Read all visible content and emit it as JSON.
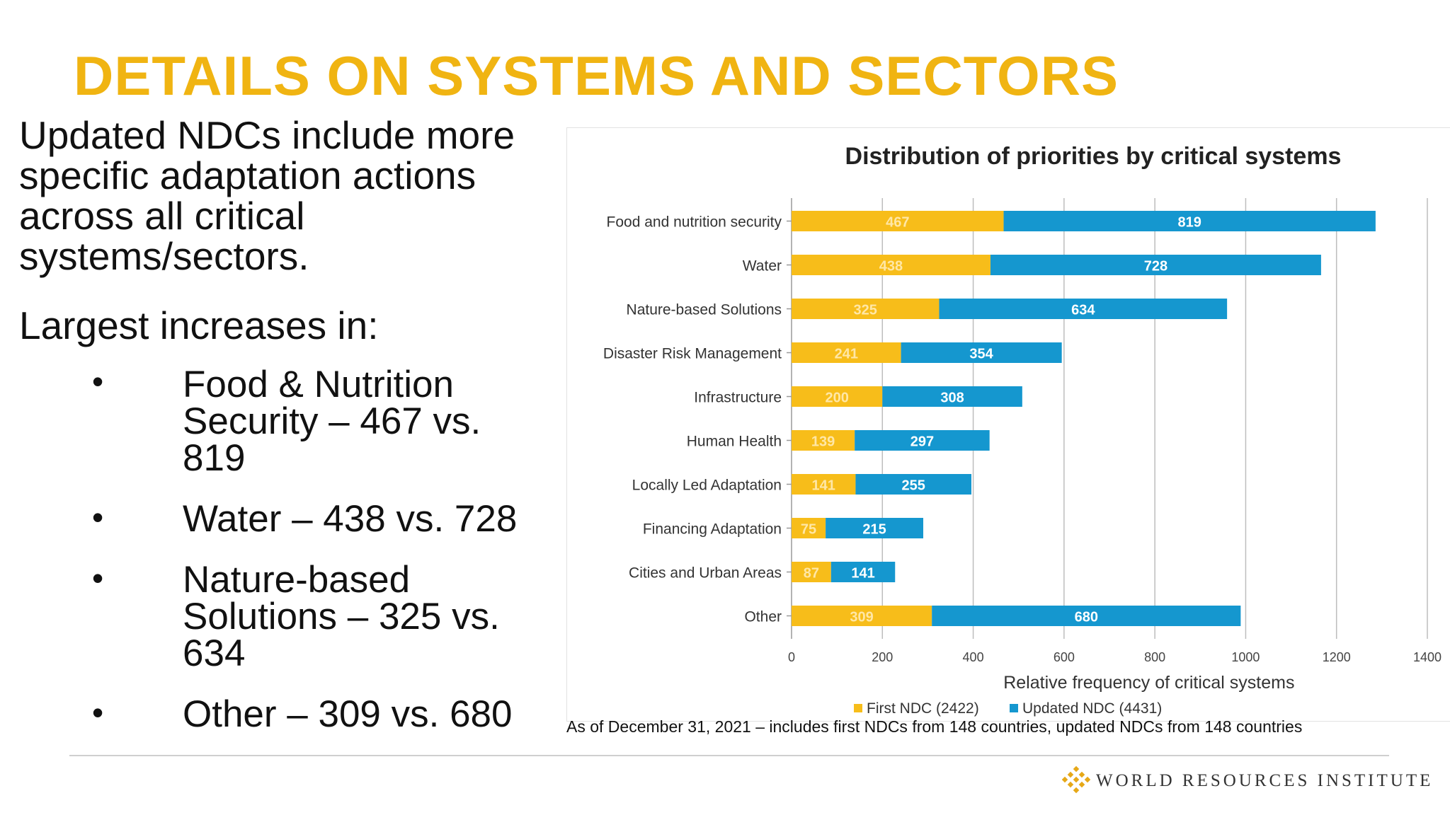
{
  "slide": {
    "title": "DETAILS ON SYSTEMS AND SECTORS",
    "intro": "Updated NDCs include more specific adaptation actions across all critical systems/sectors.",
    "subhead": "Largest increases in:",
    "bullets": [
      "Food & Nutrition Security – 467 vs. 819",
      "Water – 438 vs. 728",
      "Nature-based Solutions – 325 vs. 634",
      "Other – 309 vs. 680"
    ],
    "bullet_symbol": "•",
    "footnote": "As of December 31, 2021 – includes first NDCs from 148 countries, updated NDCs from 148 countries",
    "logo_text": "WORLD RESOURCES INSTITUTE",
    "accent_color": "#f0b412"
  },
  "chart_data": {
    "type": "bar",
    "orientation": "horizontal",
    "stacked": true,
    "title": "Distribution of priorities by critical systems",
    "xlabel": "Relative frequency of critical systems",
    "ylabel": "",
    "xlim": [
      0,
      1400
    ],
    "xticks": [
      0,
      200,
      400,
      600,
      800,
      1000,
      1200,
      1400
    ],
    "grid": true,
    "legend_position": "bottom",
    "categories": [
      "Food and nutrition security",
      "Water",
      "Nature-based Solutions",
      "Disaster Risk Management",
      "Infrastructure",
      "Human Health",
      "Locally Led Adaptation",
      "Financing Adaptation",
      "Cities and Urban Areas",
      "Other"
    ],
    "series": [
      {
        "name": "First NDC (2422)",
        "color": "#f7bd1a",
        "values": [
          467,
          438,
          325,
          241,
          200,
          139,
          141,
          75,
          87,
          309
        ]
      },
      {
        "name": "Updated NDC (4431)",
        "color": "#1597cf",
        "values": [
          819,
          728,
          634,
          354,
          308,
          297,
          255,
          215,
          141,
          680
        ]
      }
    ]
  }
}
